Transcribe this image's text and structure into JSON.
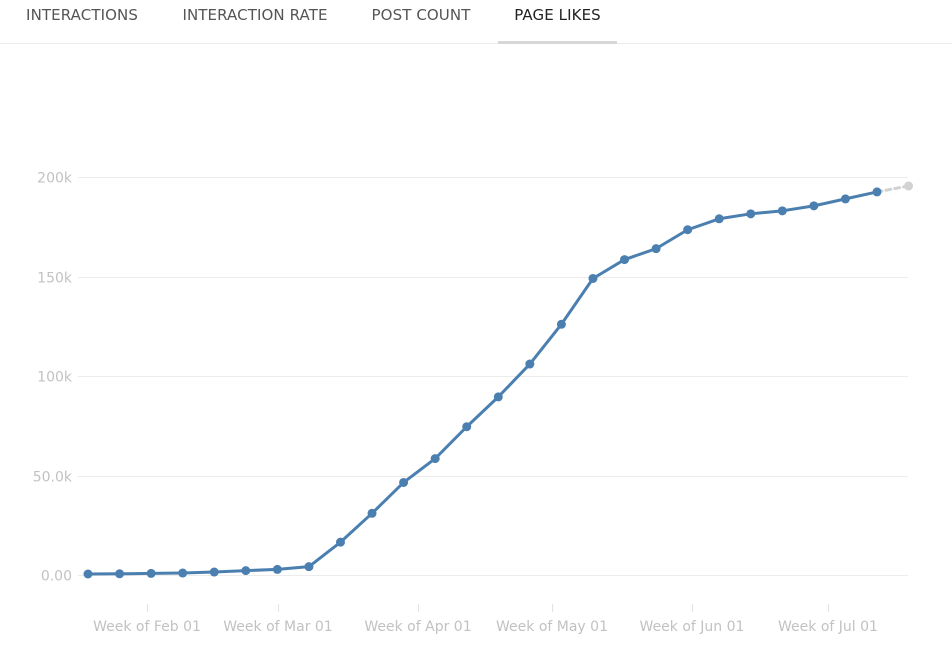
{
  "tabs": [
    {
      "label": "INTERACTIONS",
      "active": false
    },
    {
      "label": "INTERACTION RATE",
      "active": false
    },
    {
      "label": "POST COUNT",
      "active": false
    },
    {
      "label": "PAGE LIKES",
      "active": true
    }
  ],
  "colors": {
    "series": "#4a7fb0",
    "projection": "#d2d2d2",
    "grid": "#ececec",
    "axis_text": "#c2c2c2",
    "active_tab_underline": "#d7d7d7"
  },
  "chart_data": {
    "type": "line",
    "title": "",
    "xlabel": "",
    "ylabel": "",
    "ylim": [
      0,
      200000
    ],
    "y_ticks": [
      {
        "value": 0,
        "label": "0.00"
      },
      {
        "value": 50000,
        "label": "50.0k"
      },
      {
        "value": 100000,
        "label": "100k"
      },
      {
        "value": 150000,
        "label": "150k"
      },
      {
        "value": 200000,
        "label": "200k"
      }
    ],
    "x_ticks": [
      "Week of Feb 01",
      "Week of Mar 01",
      "Week of Apr 01",
      "Week of May 01",
      "Week of Jun 01",
      "Week of Jul 01"
    ],
    "grid": "horizontal",
    "legend": "none",
    "x": [
      "Jan 15",
      "Jan 22",
      "Jan 29",
      "Feb 05",
      "Feb 12",
      "Feb 19",
      "Feb 26",
      "Mar 05",
      "Mar 12",
      "Mar 19",
      "Mar 26",
      "Apr 02",
      "Apr 09",
      "Apr 16",
      "Apr 23",
      "Apr 30",
      "May 07",
      "May 14",
      "May 21",
      "May 28",
      "Jun 04",
      "Jun 11",
      "Jun 18",
      "Jun 25",
      "Jul 02",
      "Jul 09",
      "Jul 16"
    ],
    "series": [
      {
        "values": [
          500,
          600,
          800,
          1000,
          1500,
          2200,
          2800,
          4200,
          16500,
          31000,
          46500,
          58500,
          74500,
          89500,
          106000,
          126000,
          149000,
          158500,
          164000,
          173500,
          179000,
          181500,
          183000,
          185500,
          189000,
          192500,
          null
        ]
      }
    ],
    "projection": {
      "style": "dashed",
      "x": [
        "Jul 09",
        "Jul 16"
      ],
      "values": [
        192500,
        195500
      ]
    }
  }
}
